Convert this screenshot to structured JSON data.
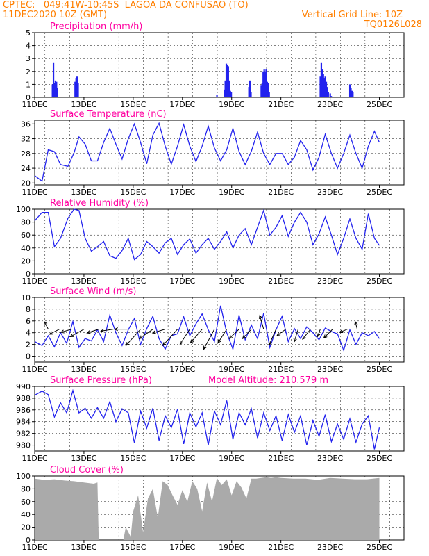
{
  "header": {
    "line1": "CPTEC:   049:41W-10:45S  LAGOA DA CONFUSAO (TO)",
    "line2": "11DEC2020 10Z (GMT)",
    "grid_note": "Vertical Grid Line: 10Z",
    "code": "TQ0126L028"
  },
  "x_labels": [
    "11DEC",
    "13DEC",
    "15DEC",
    "17DEC",
    "19DEC",
    "21DEC",
    "23DEC",
    "25DEC"
  ],
  "colors": {
    "title": "#ff00a0",
    "header": "#ff7f00",
    "series": "#2222ee",
    "cloud": "#aaaaaa",
    "wind": "#000000"
  },
  "chart_data": [
    {
      "type": "bar",
      "title": "Precipitation (mm/h)",
      "x_unit": "days since 11DEC 00Z",
      "ylim": [
        0,
        5
      ],
      "yticks": [
        0,
        1,
        2,
        3,
        4,
        5
      ],
      "x": [
        0.72,
        0.76,
        0.8,
        0.84,
        0.88,
        0.92,
        1.64,
        1.68,
        1.72,
        1.76,
        7.4,
        7.7,
        7.74,
        7.78,
        7.82,
        7.86,
        7.9,
        7.94,
        7.98,
        8.7,
        8.74,
        8.78,
        9.2,
        9.24,
        9.28,
        9.32,
        9.36,
        9.4,
        9.44,
        9.48,
        9.52,
        11.6,
        11.64,
        11.68,
        11.72,
        11.76,
        11.8,
        11.84,
        11.88,
        11.92,
        12.0,
        12.04,
        12.8,
        12.84,
        12.88,
        12.92
      ],
      "values": [
        1.0,
        2.7,
        1.1,
        1.3,
        1.2,
        0.7,
        1.2,
        1.5,
        1.6,
        1.1,
        0.2,
        0.6,
        1.3,
        2.6,
        2.5,
        2.4,
        1.3,
        0.5,
        0.4,
        0.8,
        1.3,
        0.4,
        0.9,
        1.1,
        2.0,
        2.2,
        2.0,
        2.2,
        1.2,
        1.1,
        0.4,
        1.6,
        2.7,
        2.2,
        1.8,
        1.5,
        1.6,
        1.2,
        0.8,
        0.4,
        0.3,
        0.1,
        1.0,
        0.7,
        0.5,
        0.4
      ]
    },
    {
      "type": "line",
      "title": "Surface Temperature (nC)",
      "ylim": [
        19.5,
        37
      ],
      "yticks": [
        20,
        24,
        28,
        32,
        36
      ],
      "x": [
        0,
        0.3,
        0.55,
        0.8,
        1.05,
        1.35,
        1.6,
        1.8,
        2.05,
        2.3,
        2.55,
        2.8,
        3.05,
        3.3,
        3.55,
        3.8,
        4.05,
        4.3,
        4.55,
        4.8,
        5.05,
        5.3,
        5.55,
        5.8,
        6.05,
        6.3,
        6.55,
        6.8,
        7.05,
        7.3,
        7.55,
        7.8,
        8.05,
        8.3,
        8.55,
        8.8,
        9.05,
        9.3,
        9.55,
        9.8,
        10.05,
        10.3,
        10.55,
        10.8,
        11.05,
        11.3,
        11.55,
        11.8,
        12.05,
        12.3,
        12.55,
        12.8,
        13.05,
        13.3,
        13.55,
        13.8,
        14.0
      ],
      "values": [
        22,
        20.5,
        29,
        28.5,
        25,
        24.5,
        28.2,
        32.5,
        30.5,
        26,
        26,
        31,
        34.8,
        30.5,
        26.5,
        32,
        36,
        31,
        25.2,
        33,
        36.2,
        30,
        25.1,
        30,
        35.8,
        30,
        25.8,
        30,
        35.4,
        29.5,
        26,
        29,
        34.8,
        28.5,
        25,
        28.6,
        33.8,
        28,
        25,
        28,
        28,
        25,
        27,
        31.5,
        29,
        23.5,
        27,
        33.2,
        28,
        24,
        28,
        33,
        28,
        24,
        30,
        34,
        31
      ]
    },
    {
      "type": "line",
      "title": "Relative Humidity (%)",
      "ylim": [
        0,
        100
      ],
      "yticks": [
        0,
        20,
        40,
        60,
        80,
        100
      ],
      "x": [
        0,
        0.3,
        0.55,
        0.8,
        1.05,
        1.35,
        1.6,
        1.8,
        2.05,
        2.3,
        2.55,
        2.8,
        3.05,
        3.3,
        3.55,
        3.8,
        4.05,
        4.3,
        4.55,
        4.8,
        5.05,
        5.3,
        5.55,
        5.8,
        6.05,
        6.3,
        6.55,
        6.8,
        7.05,
        7.3,
        7.55,
        7.8,
        8.05,
        8.3,
        8.55,
        8.8,
        9.05,
        9.3,
        9.55,
        9.8,
        10.05,
        10.3,
        10.55,
        10.8,
        11.05,
        11.3,
        11.55,
        11.8,
        12.05,
        12.3,
        12.55,
        12.8,
        13.05,
        13.3,
        13.55,
        13.8,
        14.0
      ],
      "values": [
        82,
        95,
        95,
        42,
        55,
        86,
        100,
        98,
        55,
        35,
        42,
        50,
        28,
        24,
        36,
        55,
        22,
        30,
        50,
        42,
        32,
        48,
        55,
        30,
        45,
        54,
        32,
        45,
        55,
        38,
        50,
        65,
        40,
        60,
        70,
        45,
        72,
        98,
        60,
        72,
        90,
        58,
        80,
        95,
        80,
        45,
        62,
        88,
        60,
        30,
        55,
        85,
        55,
        38,
        93,
        55,
        44
      ]
    },
    {
      "type": "line",
      "title": "Surface Wind (m/s)",
      "ylim": [
        -1,
        10
      ],
      "yticks": [
        0,
        2,
        4,
        6,
        8,
        10
      ],
      "x": [
        0,
        0.3,
        0.55,
        0.8,
        1.05,
        1.3,
        1.55,
        1.8,
        2.05,
        2.3,
        2.55,
        2.8,
        3.05,
        3.3,
        3.55,
        3.8,
        4.05,
        4.3,
        4.55,
        4.8,
        5.05,
        5.3,
        5.55,
        5.8,
        6.05,
        6.3,
        6.55,
        6.8,
        7.05,
        7.3,
        7.55,
        7.8,
        8.05,
        8.3,
        8.55,
        8.8,
        9.05,
        9.3,
        9.55,
        9.8,
        10.05,
        10.3,
        10.55,
        10.8,
        11.05,
        11.3,
        11.55,
        11.8,
        12.05,
        12.3,
        12.55,
        12.8,
        13.05,
        13.3,
        13.55,
        13.8,
        14.0
      ],
      "values": [
        2.5,
        1.8,
        3.5,
        1.6,
        4.0,
        2.2,
        5.9,
        1.5,
        3.0,
        2.6,
        4.5,
        2.5,
        7.0,
        4.0,
        1.8,
        4.5,
        6.4,
        2.0,
        4.7,
        6.8,
        3.0,
        1.2,
        3.5,
        3.8,
        6.7,
        3.5,
        5.5,
        7.2,
        4.5,
        2.5,
        8.6,
        4.0,
        1.2,
        7.0,
        2.8,
        5.3,
        3.0,
        7.3,
        1.5,
        4.5,
        6.8,
        2.5,
        4.7,
        3.0,
        5.0,
        4.0,
        2.8,
        4.8,
        4.2,
        3.8,
        1.0,
        4.5,
        2.0,
        4.0,
        3.5,
        4.2,
        3.0
      ],
      "vectors": [
        {
          "x": 0.55,
          "u": -0.4,
          "v": 1.2
        },
        {
          "x": 1.0,
          "u": -1.0,
          "v": -0.8
        },
        {
          "x": 1.5,
          "u": -1.1,
          "v": -0.5
        },
        {
          "x": 2.0,
          "u": -1.4,
          "v": -1.2
        },
        {
          "x": 2.6,
          "u": -1.2,
          "v": -0.6
        },
        {
          "x": 3.2,
          "u": -1.3,
          "v": -0.3
        },
        {
          "x": 3.8,
          "u": -1.4,
          "v": 0.0
        },
        {
          "x": 4.3,
          "u": -1.5,
          "v": -2.6
        },
        {
          "x": 4.8,
          "u": -1.4,
          "v": -1.5
        },
        {
          "x": 5.3,
          "u": -1.3,
          "v": -0.6
        },
        {
          "x": 5.8,
          "u": -1.5,
          "v": -2.6
        },
        {
          "x": 6.3,
          "u": -1.0,
          "v": -2.4
        },
        {
          "x": 6.8,
          "u": -1.2,
          "v": -2.2
        },
        {
          "x": 7.3,
          "u": -1.1,
          "v": -3.2
        },
        {
          "x": 7.8,
          "u": -0.9,
          "v": -2.2
        },
        {
          "x": 8.3,
          "u": -1.0,
          "v": -1.5
        },
        {
          "x": 8.8,
          "u": -0.9,
          "v": -1.5
        },
        {
          "x": 9.3,
          "u": -0.4,
          "v": 2.2
        },
        {
          "x": 9.8,
          "u": -0.7,
          "v": -2.5
        },
        {
          "x": 10.2,
          "u": -0.9,
          "v": -1.0
        },
        {
          "x": 10.7,
          "u": -0.4,
          "v": -2.0
        },
        {
          "x": 11.2,
          "u": -0.8,
          "v": -1.6
        },
        {
          "x": 11.6,
          "u": -0.3,
          "v": -1.2
        },
        {
          "x": 12.1,
          "u": -0.9,
          "v": -1.4
        },
        {
          "x": 12.7,
          "u": -0.8,
          "v": -0.5
        },
        {
          "x": 13.1,
          "u": -0.2,
          "v": 1.2
        }
      ]
    },
    {
      "type": "line",
      "title": "Surface Pressure (hPa)",
      "annotation": "Model Altitude: 210.579  m",
      "ylim": [
        979,
        990
      ],
      "yticks": [
        980,
        982,
        984,
        986,
        988,
        990
      ],
      "x": [
        0,
        0.3,
        0.55,
        0.8,
        1.05,
        1.3,
        1.55,
        1.8,
        2.05,
        2.3,
        2.55,
        2.8,
        3.05,
        3.3,
        3.55,
        3.8,
        4.05,
        4.3,
        4.55,
        4.8,
        5.05,
        5.3,
        5.55,
        5.8,
        6.05,
        6.3,
        6.55,
        6.8,
        7.05,
        7.3,
        7.55,
        7.8,
        8.05,
        8.3,
        8.55,
        8.8,
        9.05,
        9.3,
        9.55,
        9.8,
        10.05,
        10.3,
        10.55,
        10.8,
        11.05,
        11.3,
        11.55,
        11.8,
        12.05,
        12.3,
        12.55,
        12.8,
        13.05,
        13.3,
        13.55,
        13.8,
        14.0
      ],
      "values": [
        988.5,
        989.2,
        988.6,
        984.8,
        987.2,
        985.5,
        989.3,
        985.5,
        986.3,
        984.6,
        986.4,
        984.6,
        987.4,
        984.0,
        986.2,
        985.5,
        980.4,
        985.8,
        982.9,
        986.3,
        980.8,
        985.0,
        983.0,
        986.1,
        980.2,
        985.5,
        983.1,
        985.5,
        980.0,
        985.8,
        983.5,
        987.6,
        981.0,
        985.5,
        983.5,
        986.2,
        981.2,
        985.5,
        982.5,
        985.0,
        980.8,
        985.2,
        982.2,
        985.0,
        980.0,
        984.2,
        981.5,
        985.2,
        980.6,
        983.6,
        981.0,
        984.5,
        980.5,
        983.6,
        985.0,
        979.3,
        983.0
      ]
    },
    {
      "type": "area",
      "title": "Cloud Cover (%)",
      "ylim": [
        0,
        100
      ],
      "yticks": [
        0,
        20,
        40,
        60,
        80,
        100
      ],
      "x": [
        0,
        0.4,
        0.8,
        1.2,
        1.6,
        2.0,
        2.4,
        2.55,
        2.6,
        3.0,
        3.6,
        3.7,
        3.9,
        4.0,
        4.2,
        4.4,
        4.6,
        4.8,
        5.0,
        5.2,
        5.4,
        5.6,
        5.8,
        6.0,
        6.2,
        6.4,
        6.6,
        6.8,
        7.0,
        7.2,
        7.4,
        7.6,
        7.8,
        8.0,
        8.2,
        8.4,
        8.6,
        8.8,
        9.0,
        9.2,
        9.4,
        9.6,
        9.8,
        10.0,
        10.5,
        11.0,
        11.5,
        12.0,
        12.5,
        13.0,
        13.5,
        14.0
      ],
      "values": [
        96,
        94,
        95,
        93,
        92,
        90,
        88,
        90,
        0,
        0,
        0,
        20,
        5,
        45,
        70,
        12,
        65,
        80,
        35,
        92,
        86,
        70,
        55,
        78,
        60,
        92,
        80,
        45,
        90,
        60,
        97,
        86,
        95,
        70,
        92,
        82,
        65,
        96,
        96,
        97,
        98,
        97,
        98,
        97,
        96,
        96,
        94,
        97,
        96,
        95,
        95,
        97
      ]
    }
  ]
}
